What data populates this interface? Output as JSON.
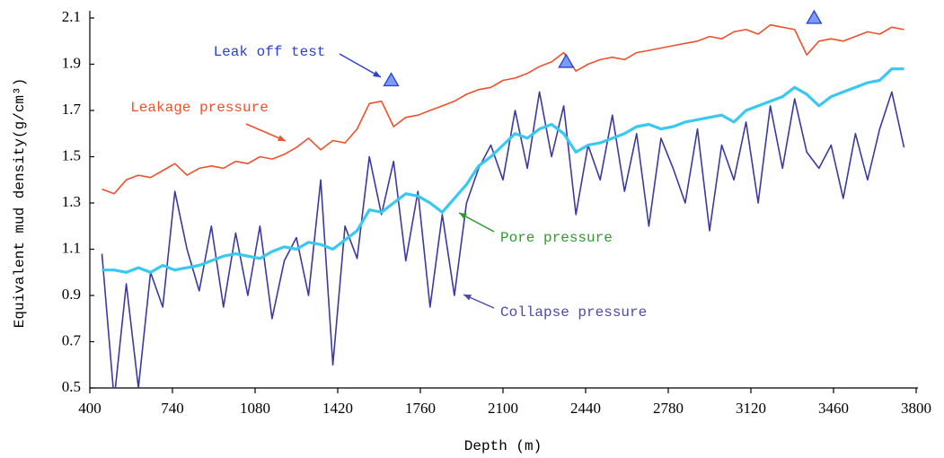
{
  "chart_data": {
    "type": "line",
    "xlabel": "Depth (m)",
    "ylabel": "Equivalent mud density(g/cm³)",
    "xlim": [
      400,
      3800
    ],
    "xticks": [
      400,
      740,
      1080,
      1420,
      1760,
      2100,
      2440,
      2780,
      3120,
      3460,
      3800
    ],
    "ylim": [
      0.5,
      2.1
    ],
    "yticks": [
      0.5,
      0.7,
      0.9,
      1.1,
      1.3,
      1.5,
      1.7,
      1.9,
      2.1
    ],
    "grid": false,
    "x": [
      450,
      500,
      550,
      600,
      650,
      700,
      750,
      800,
      850,
      900,
      950,
      1000,
      1050,
      1100,
      1150,
      1200,
      1250,
      1300,
      1350,
      1400,
      1450,
      1500,
      1550,
      1600,
      1650,
      1700,
      1750,
      1800,
      1850,
      1900,
      1950,
      2000,
      2050,
      2100,
      2150,
      2200,
      2250,
      2300,
      2350,
      2400,
      2450,
      2500,
      2550,
      2600,
      2650,
      2700,
      2750,
      2800,
      2850,
      2900,
      2950,
      3000,
      3050,
      3100,
      3150,
      3200,
      3250,
      3300,
      3350,
      3400,
      3450,
      3500,
      3550,
      3600,
      3650,
      3700,
      3750
    ],
    "series": [
      {
        "name": "Leakage pressure",
        "color": "#f0502a",
        "line_width": 1.6,
        "values": [
          1.36,
          1.34,
          1.4,
          1.42,
          1.41,
          1.44,
          1.47,
          1.42,
          1.45,
          1.46,
          1.45,
          1.48,
          1.47,
          1.5,
          1.49,
          1.51,
          1.54,
          1.58,
          1.53,
          1.57,
          1.56,
          1.62,
          1.73,
          1.74,
          1.63,
          1.67,
          1.68,
          1.7,
          1.72,
          1.74,
          1.77,
          1.79,
          1.8,
          1.83,
          1.84,
          1.86,
          1.89,
          1.91,
          1.95,
          1.87,
          1.9,
          1.92,
          1.93,
          1.92,
          1.95,
          1.96,
          1.97,
          1.98,
          1.99,
          2.0,
          2.02,
          2.01,
          2.04,
          2.05,
          2.03,
          2.07,
          2.06,
          2.05,
          1.94,
          2.0,
          2.01,
          2.0,
          2.02,
          2.04,
          2.03,
          2.06,
          2.05
        ]
      },
      {
        "name": "Pore pressure",
        "color": "#38c8f0",
        "line_width": 3.2,
        "values": [
          1.01,
          1.01,
          1.0,
          1.02,
          1.0,
          1.03,
          1.01,
          1.02,
          1.03,
          1.05,
          1.07,
          1.08,
          1.07,
          1.06,
          1.09,
          1.11,
          1.1,
          1.13,
          1.12,
          1.1,
          1.14,
          1.18,
          1.27,
          1.26,
          1.3,
          1.34,
          1.33,
          1.3,
          1.26,
          1.32,
          1.38,
          1.46,
          1.5,
          1.55,
          1.6,
          1.58,
          1.62,
          1.64,
          1.6,
          1.52,
          1.55,
          1.56,
          1.58,
          1.6,
          1.63,
          1.64,
          1.62,
          1.63,
          1.65,
          1.66,
          1.67,
          1.68,
          1.65,
          1.7,
          1.72,
          1.74,
          1.76,
          1.8,
          1.77,
          1.72,
          1.76,
          1.78,
          1.8,
          1.82,
          1.83,
          1.88,
          1.88
        ]
      },
      {
        "name": "Collapse pressure",
        "color": "#3a3aa0",
        "line_width": 1.6,
        "values": [
          1.08,
          0.45,
          0.95,
          0.5,
          1.0,
          0.85,
          1.35,
          1.1,
          0.92,
          1.2,
          0.85,
          1.17,
          0.9,
          1.2,
          0.8,
          1.05,
          1.15,
          0.9,
          1.4,
          0.6,
          1.2,
          1.06,
          1.5,
          1.25,
          1.48,
          1.05,
          1.35,
          0.85,
          1.25,
          0.9,
          1.3,
          1.45,
          1.55,
          1.4,
          1.7,
          1.45,
          1.78,
          1.5,
          1.72,
          1.25,
          1.55,
          1.4,
          1.68,
          1.35,
          1.6,
          1.2,
          1.58,
          1.45,
          1.3,
          1.62,
          1.18,
          1.55,
          1.4,
          1.65,
          1.3,
          1.72,
          1.45,
          1.75,
          1.52,
          1.45,
          1.55,
          1.32,
          1.6,
          1.4,
          1.62,
          1.78,
          1.54
        ]
      },
      {
        "name": "Leak off test",
        "color": "#7b9cf5",
        "marker": "triangle",
        "x": [
          1640,
          2360,
          3380
        ],
        "values": [
          1.83,
          1.91,
          2.1
        ]
      }
    ]
  }
}
